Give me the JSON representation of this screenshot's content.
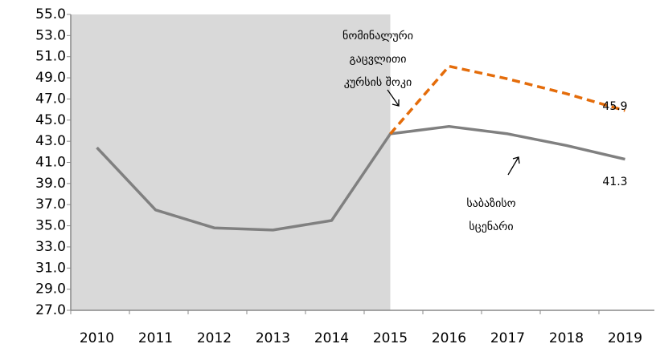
{
  "chart_data": {
    "type": "line",
    "categories": [
      "2010",
      "2011",
      "2012",
      "2013",
      "2014",
      "2015",
      "2016",
      "2017",
      "2018",
      "2019"
    ],
    "series": [
      {
        "color": "#808080",
        "dash": false,
        "values": [
          42.4,
          36.5,
          34.8,
          34.6,
          35.5,
          43.7,
          44.4,
          43.7,
          42.6,
          41.3
        ]
      },
      {
        "color": "#e46c0a",
        "dash": true,
        "values": [
          null,
          null,
          null,
          null,
          null,
          43.7,
          50.1,
          48.9,
          47.5,
          45.9
        ]
      }
    ],
    "ylim": [
      27,
      55
    ],
    "yticks": [
      {
        "value": 27,
        "label": "27.0"
      },
      {
        "value": 29,
        "label": "29.0"
      },
      {
        "value": 31,
        "label": "31.0"
      },
      {
        "value": 33,
        "label": "33.0"
      },
      {
        "value": 35,
        "label": "35.0"
      },
      {
        "value": 37,
        "label": "37.0"
      },
      {
        "value": 39,
        "label": "39.0"
      },
      {
        "value": 41,
        "label": "41.0"
      },
      {
        "value": 43,
        "label": "43.0"
      },
      {
        "value": 45,
        "label": "45.0"
      },
      {
        "value": 47,
        "label": "47.0"
      },
      {
        "value": 49,
        "label": "49.0"
      },
      {
        "value": 51,
        "label": "51.0"
      },
      {
        "value": 53,
        "label": "53.0"
      },
      {
        "value": 55,
        "label": "55.0"
      }
    ],
    "annotations": [
      {
        "lines": [
          "ნომინალური",
          "გაცვლითი",
          "კურსის შოკი"
        ]
      },
      {
        "lines": [
          "საბაზისო",
          "სცენარი"
        ]
      }
    ],
    "shade_color": "#d9d9d9",
    "grid": false
  }
}
